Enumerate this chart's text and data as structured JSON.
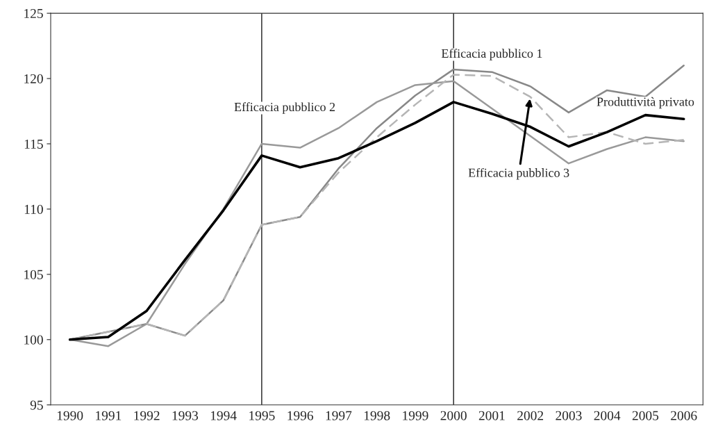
{
  "chart_data": {
    "type": "line",
    "categories": [
      "1990",
      "1991",
      "1992",
      "1993",
      "1994",
      "1995",
      "1996",
      "1997",
      "1998",
      "1999",
      "2000",
      "2001",
      "2002",
      "2003",
      "2004",
      "2005",
      "2006"
    ],
    "series": [
      {
        "color": "#888888",
        "line_style": "solid",
        "values": [
          100,
          100.6,
          101.2,
          100.3,
          103,
          108.8,
          109.4,
          113.1,
          116.2,
          118.7,
          120.7,
          120.5,
          119.4,
          117.4,
          119.1,
          118.6,
          121.0
        ]
      },
      {
        "color": "#999999",
        "line_style": "solid",
        "values": [
          100,
          99.5,
          101.2,
          105.8,
          110,
          115.0,
          114.7,
          116.2,
          118.2,
          119.5,
          119.8,
          117.7,
          115.6,
          113.5,
          114.6,
          115.5,
          115.2
        ]
      },
      {
        "color": "#b5b5b5",
        "line_style": "dashed",
        "values": [
          100,
          100.6,
          101.2,
          100.3,
          103,
          108.8,
          109.4,
          112.8,
          115.5,
          118.0,
          120.3,
          120.2,
          118.6,
          115.5,
          115.9,
          115.0,
          115.3
        ]
      },
      {
        "color": "#000000",
        "line_style": "solid",
        "values": [
          100,
          100.2,
          102.2,
          106.1,
          109.9,
          114.1,
          113.2,
          113.9,
          115.2,
          116.6,
          118.2,
          117.3,
          116.3,
          114.8,
          115.9,
          117.2,
          116.9
        ]
      }
    ],
    "ylim": [
      95,
      125
    ],
    "yticks": [
      95,
      100,
      105,
      110,
      115,
      120,
      125
    ],
    "ref_lines": [
      {
        "axis": "x",
        "value": "1995",
        "color": "#000000"
      },
      {
        "axis": "x",
        "value": "2000",
        "color": "#000000"
      }
    ],
    "annotations": [
      {
        "text": "Efficacia pubblico 1",
        "x": "2001",
        "y": 120.5
      },
      {
        "text": "Efficacia pubblico 2",
        "x": "1996",
        "y": 114.7
      },
      {
        "text": "Efficacia pubblico 3",
        "x": "2002",
        "y": 118.6
      },
      {
        "text": "Produttività privato",
        "x": "2005",
        "y": 117.2
      }
    ],
    "grid": false,
    "legend": false
  }
}
